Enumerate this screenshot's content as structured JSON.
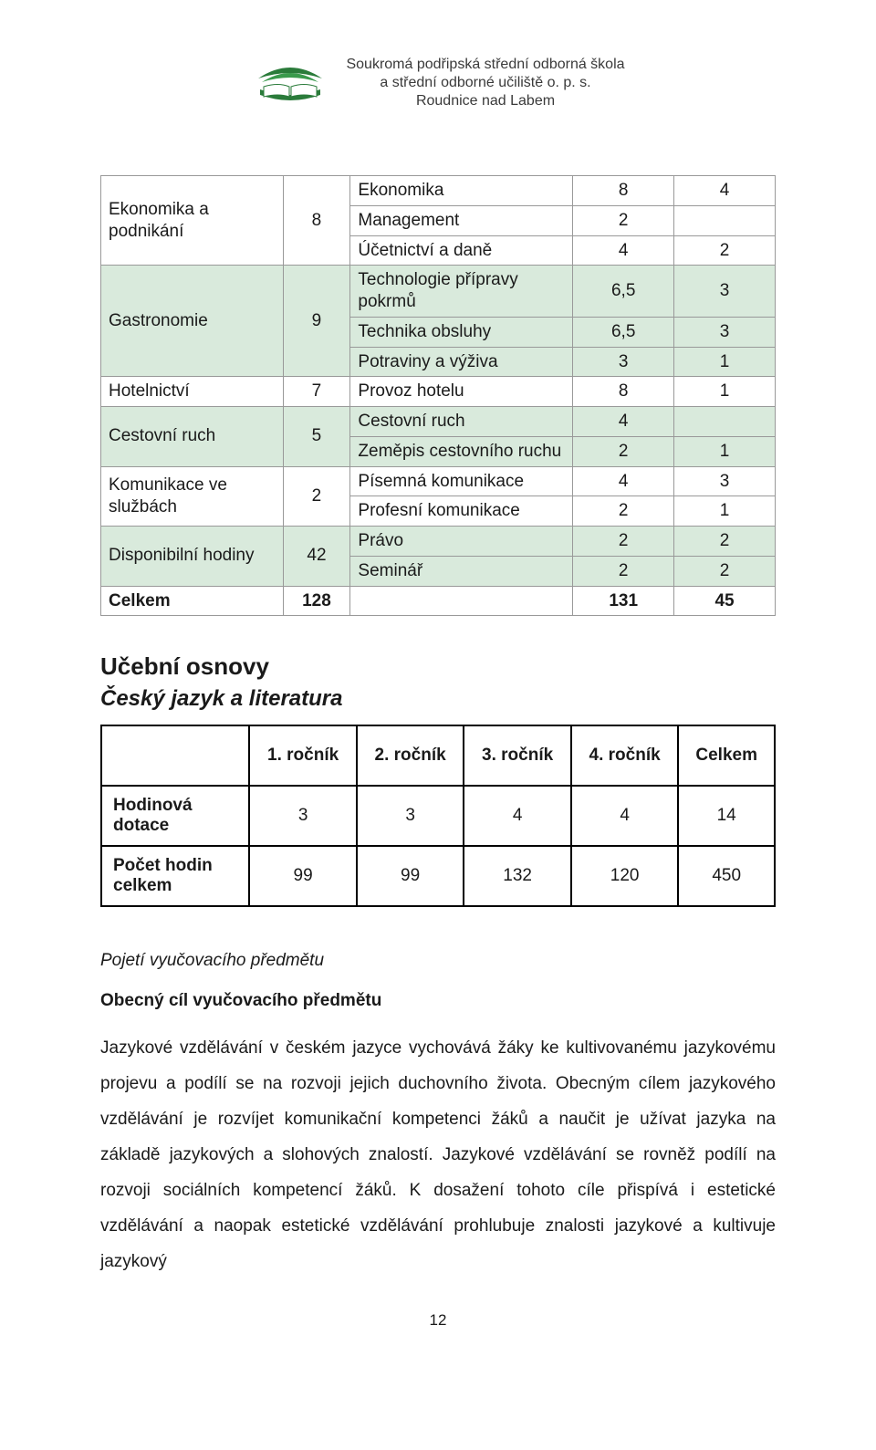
{
  "header": {
    "line1": "Soukromá podřipská střední odborná škola",
    "line2": "a střední odborné učiliště o. p. s.",
    "line3": "Roudnice nad Labem"
  },
  "table1": {
    "row_colors": {
      "stripe": "#d9eadc",
      "plain": "#ffffff"
    },
    "rows": [
      {
        "g": "Ekonomika a podnikání",
        "gn": "8",
        "sub": "Ekonomika",
        "a": "8",
        "b": "4",
        "striped": false,
        "span": 3
      },
      {
        "sub": "Management",
        "a": "2",
        "b": "",
        "striped": false
      },
      {
        "sub": "Účetnictví a daně",
        "a": "4",
        "b": "2",
        "striped": false
      },
      {
        "g": "Gastronomie",
        "gn": "9",
        "sub": "Technologie přípravy pokrmů",
        "a": "6,5",
        "b": "3",
        "striped": true,
        "span": 3
      },
      {
        "sub": "Technika obsluhy",
        "a": "6,5",
        "b": "3",
        "striped": true
      },
      {
        "sub": "Potraviny a výživa",
        "a": "3",
        "b": "1",
        "striped": true
      },
      {
        "g": "Hotelnictví",
        "gn": "7",
        "sub": "Provoz hotelu",
        "a": "8",
        "b": "1",
        "striped": false,
        "span": 1
      },
      {
        "g": "Cestovní ruch",
        "gn": "5",
        "sub": "Cestovní ruch",
        "a": "4",
        "b": "",
        "striped": true,
        "span": 2
      },
      {
        "sub": "Zeměpis cestovního ruchu",
        "a": "2",
        "b": "1",
        "striped": true
      },
      {
        "g": "Komunikace ve službách",
        "gn": "2",
        "sub": "Písemná komunikace",
        "a": "4",
        "b": "3",
        "striped": false,
        "span": 2
      },
      {
        "sub": "Profesní komunikace",
        "a": "2",
        "b": "1",
        "striped": false
      },
      {
        "g": "Disponibilní hodiny",
        "gn": "42",
        "sub": "Právo",
        "a": "2",
        "b": "2",
        "striped": true,
        "span": 2
      },
      {
        "sub": "Seminář",
        "a": "2",
        "b": "2",
        "striped": true
      },
      {
        "g": "Celkem",
        "gn": "128",
        "sub": "",
        "a": "131",
        "b": "45",
        "striped": false,
        "span": 1,
        "bold": true
      }
    ]
  },
  "section": {
    "h2": "Učební osnovy",
    "h3": "Český jazyk a literatura"
  },
  "table2": {
    "headers": [
      "",
      "1. ročník",
      "2. ročník",
      "3. ročník",
      "4. ročník",
      "Celkem"
    ],
    "rows": [
      {
        "label": "Hodinová dotace",
        "v": [
          "3",
          "3",
          "4",
          "4",
          "14"
        ]
      },
      {
        "label": "Počet hodin celkem",
        "v": [
          "99",
          "99",
          "132",
          "120",
          "450"
        ]
      }
    ]
  },
  "body": {
    "it_heading": "Pojetí vyučovacího předmětu",
    "b_heading": "Obecný cíl vyučovacího předmětu",
    "paragraph": "Jazykové vzdělávání v českém jazyce vychovává žáky ke kultivovanému jazykovému projevu a podílí se na rozvoji jejich duchovního života. Obecným cílem jazykového vzdělávání je rozvíjet komunikační kompetenci žáků a naučit je užívat jazyka na základě jazykových a slohových znalostí. Jazykové vzdělávání se rovněž podílí na rozvoji sociálních kompetencí žáků. K dosažení tohoto cíle přispívá i estetické vzdělávání a naopak estetické vzdělávání prohlubuje znalosti jazykové a kultivuje jazykový"
  },
  "page_number": "12"
}
